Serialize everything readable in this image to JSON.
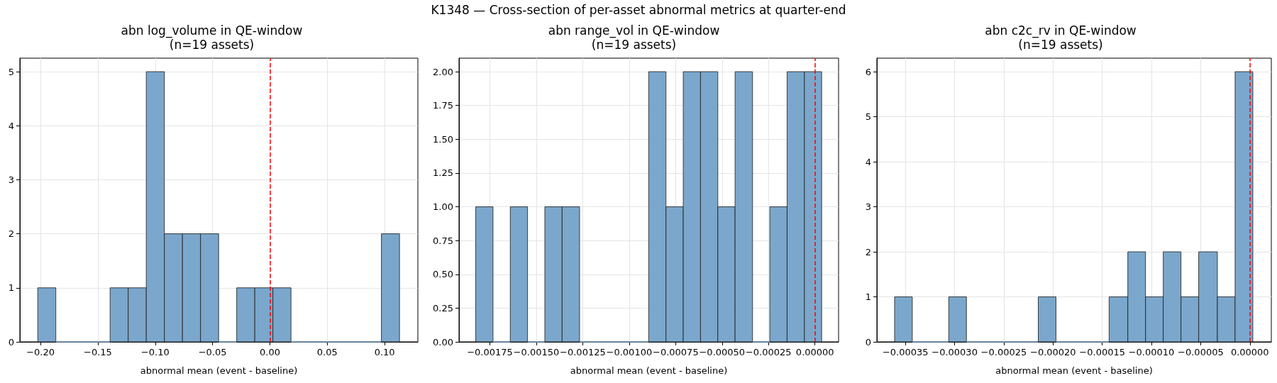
{
  "chart_data": [
    {
      "type": "histogram",
      "title": "abn log_volume in QE-window\n(n=19 assets)",
      "xlabel": "abnormal mean (event - baseline)",
      "annotations": [
        "K1348 — Cross-section of per-asset abnormal metrics at quarter-end"
      ],
      "color": "#7ba7cc",
      "bins": [
        -0.2024,
        -0.18663,
        -0.17086,
        -0.15509,
        -0.13932,
        -0.12355,
        -0.10778,
        -0.09201,
        -0.07624,
        -0.06047,
        -0.0447,
        -0.02893,
        -0.01316,
        0.00261,
        0.01838,
        0.03415,
        0.04992,
        0.06569,
        0.08146,
        0.09723,
        0.113
      ],
      "values": [
        1,
        0,
        0,
        0,
        1,
        1,
        5,
        2,
        2,
        2,
        0,
        1,
        1,
        1,
        0,
        0,
        0,
        0,
        0,
        2
      ],
      "xlim": [
        -0.218,
        0.129
      ],
      "ylim": [
        0,
        5.25
      ],
      "xticks": [
        {
          "value": -0.2,
          "label": "−0.20"
        },
        {
          "value": -0.15,
          "label": "−0.15"
        },
        {
          "value": -0.1,
          "label": "−0.10"
        },
        {
          "value": -0.05,
          "label": "−0.05"
        },
        {
          "value": 0,
          "label": "0.00"
        },
        {
          "value": 0.05,
          "label": "0.05"
        },
        {
          "value": 0.1,
          "label": "0.10"
        }
      ],
      "yticks": [
        0,
        1,
        2,
        3,
        4,
        5
      ],
      "grid": true,
      "ref_lines": [
        {
          "axis": "x",
          "value": 0,
          "label": null,
          "color": "#ff0000",
          "line_style": "dashed"
        }
      ]
    },
    {
      "type": "histogram",
      "title": "abn range_vol in QE-window\n(n=19 assets)",
      "xlabel": "abnormal mean (event - baseline)",
      "color": "#7ba7cc",
      "bins": [
        -0.001826,
        -0.001733,
        -0.00164,
        -0.001547,
        -0.001454,
        -0.001361,
        -0.001267,
        -0.001174,
        -0.001081,
        -0.000988,
        -0.000895,
        -0.000802,
        -0.000709,
        -0.000616,
        -0.000523,
        -0.00043,
        -0.000336,
        -0.000243,
        -0.00015,
        -5.7e-05,
        3.6e-05
      ],
      "values": [
        1,
        0,
        1,
        0,
        1,
        1,
        0,
        0,
        0,
        0,
        2,
        1,
        2,
        2,
        1,
        2,
        0,
        1,
        2,
        2
      ],
      "xlim": [
        -0.001916,
        0.000127
      ],
      "ylim": [
        0,
        2.1
      ],
      "xticks": [
        {
          "value": -0.00175,
          "label": "−0.00175"
        },
        {
          "value": -0.0015,
          "label": "−0.00150"
        },
        {
          "value": -0.00125,
          "label": "−0.00125"
        },
        {
          "value": -0.001,
          "label": "−0.00100"
        },
        {
          "value": -0.00075,
          "label": "−0.00075"
        },
        {
          "value": -0.0005,
          "label": "−0.00050"
        },
        {
          "value": -0.00025,
          "label": "−0.00025"
        },
        {
          "value": 0,
          "label": "0.00000"
        }
      ],
      "yticks": [
        {
          "value": 0,
          "label": "0.00"
        },
        {
          "value": 0.25,
          "label": "0.25"
        },
        {
          "value": 0.5,
          "label": "0.50"
        },
        {
          "value": 0.75,
          "label": "0.75"
        },
        {
          "value": 1,
          "label": "1.00"
        },
        {
          "value": 1.25,
          "label": "1.25"
        },
        {
          "value": 1.5,
          "label": "1.50"
        },
        {
          "value": 1.75,
          "label": "1.75"
        },
        {
          "value": 2,
          "label": "2.00"
        }
      ],
      "grid": true,
      "ref_lines": [
        {
          "axis": "x",
          "value": 0,
          "label": null,
          "color": "#ff0000",
          "line_style": "dashed"
        }
      ]
    },
    {
      "type": "histogram",
      "title": "abn c2c_rv in QE-window\n(n=19 assets)",
      "xlabel": "abnormal mean (event - baseline)",
      "color": "#7ba7cc",
      "bins": [
        -0.000361,
        -0.000343,
        -0.000325,
        -0.000306,
        -0.000288,
        -0.00027,
        -0.000252,
        -0.000234,
        -0.000215,
        -0.000197,
        -0.000179,
        -0.000161,
        -0.000143,
        -0.000124,
        -0.000106,
        -8.8e-05,
        -7e-05,
        -5.2e-05,
        -3.3e-05,
        -1.5e-05,
        3e-06
      ],
      "values": [
        1,
        0,
        0,
        1,
        0,
        0,
        0,
        0,
        1,
        0,
        0,
        0,
        1,
        2,
        1,
        2,
        1,
        2,
        1,
        6
      ],
      "xlim": [
        -0.000379,
        2.18e-05
      ],
      "ylim": [
        0,
        6.3
      ],
      "xticks": [
        {
          "value": -0.00035,
          "label": "−0.00035"
        },
        {
          "value": -0.0003,
          "label": "−0.00030"
        },
        {
          "value": -0.00025,
          "label": "−0.00025"
        },
        {
          "value": -0.0002,
          "label": "−0.00020"
        },
        {
          "value": -0.00015,
          "label": "−0.00015"
        },
        {
          "value": -0.0001,
          "label": "−0.00010"
        },
        {
          "value": -5e-05,
          "label": "−0.00005"
        },
        {
          "value": 0,
          "label": "0.00000"
        }
      ],
      "yticks": [
        0,
        1,
        2,
        3,
        4,
        5,
        6
      ],
      "grid": true,
      "ref_lines": [
        {
          "axis": "x",
          "value": 0,
          "label": null,
          "color": "#ff0000",
          "line_style": "dashed"
        }
      ]
    }
  ]
}
